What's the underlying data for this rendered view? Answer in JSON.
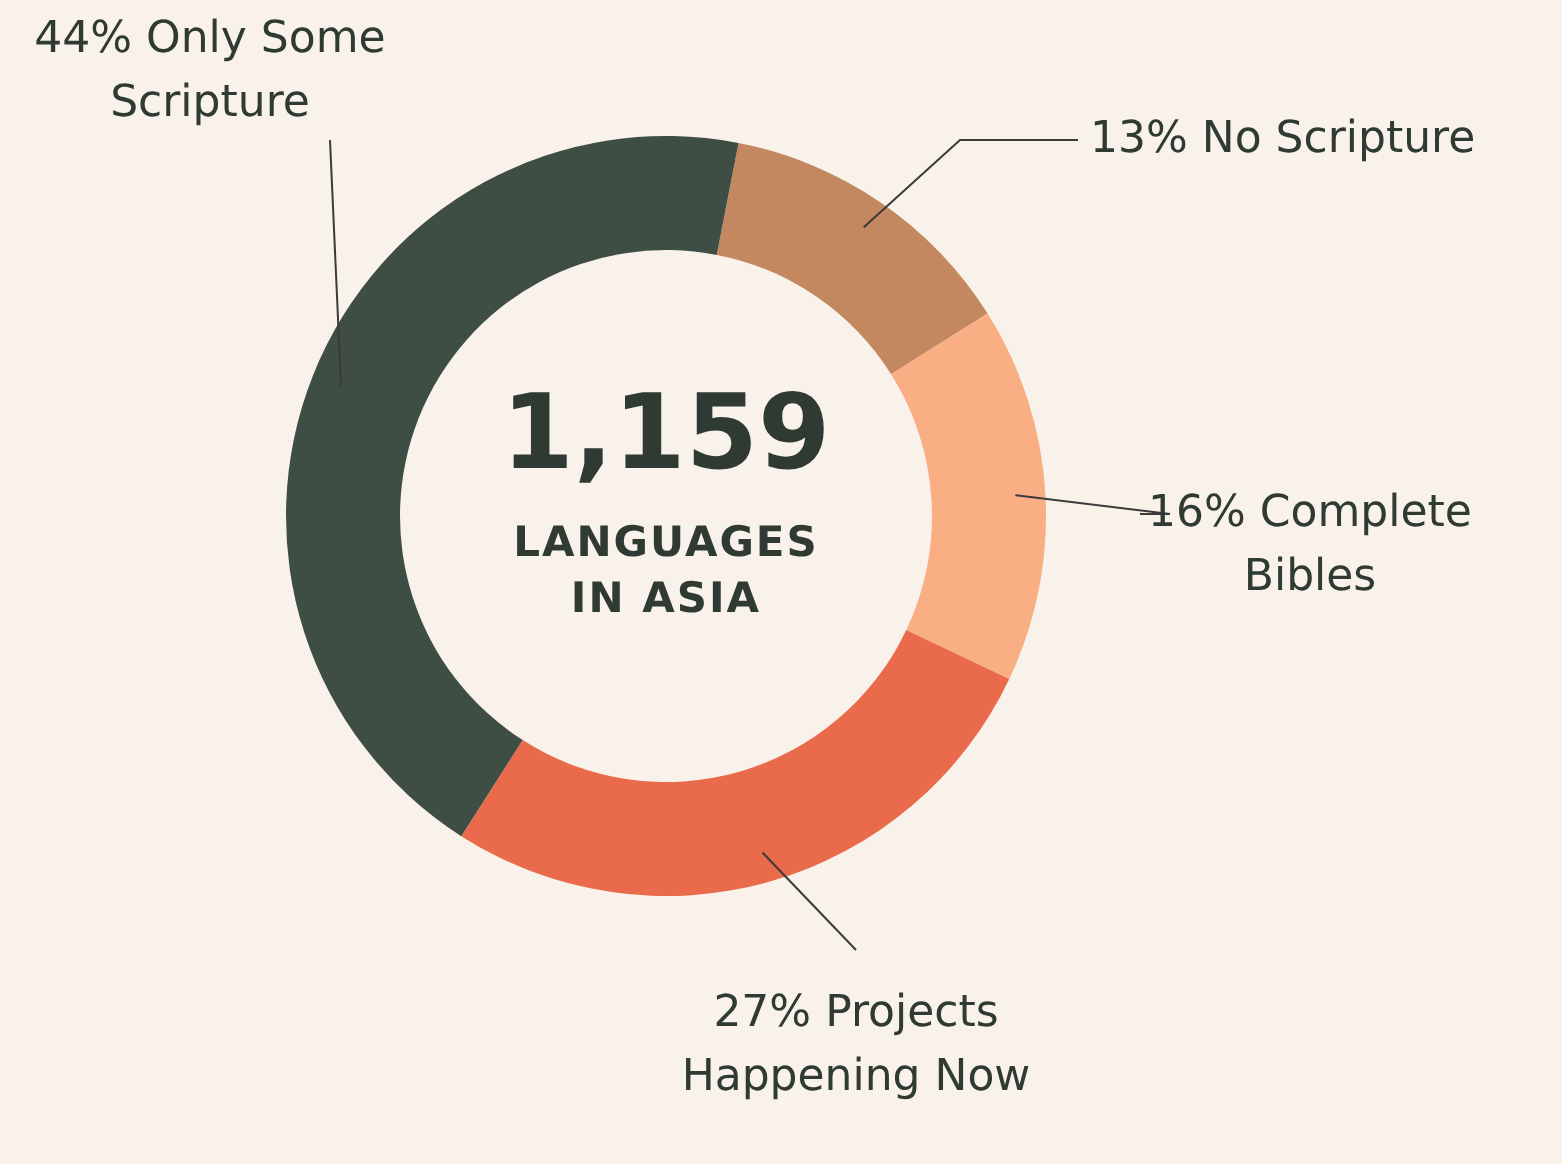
{
  "chart_data": {
    "type": "donut",
    "categories": [
      "No Scripture",
      "Complete Bibles",
      "Projects Happening Now",
      "Only Some Scripture"
    ],
    "values": [
      13,
      16,
      27,
      44
    ],
    "value_labels": [
      "13%",
      "16%",
      "27%",
      "44%"
    ],
    "colors": [
      "#c3885f",
      "#f9ae84",
      "#ea6a4c",
      "#3e4e45"
    ],
    "annotations": [
      "1,159",
      "LANGUAGES IN ASIA"
    ]
  }
}
